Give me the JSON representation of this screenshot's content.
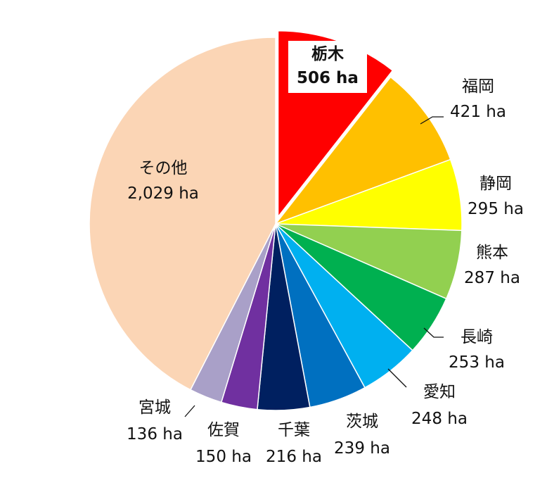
{
  "chart_data": {
    "type": "pie",
    "unit": "ha",
    "slices": [
      {
        "label": "栃木",
        "value": 506,
        "display": "506 ha",
        "color": "#ff0000",
        "exploded": true,
        "bold": true
      },
      {
        "label": "福岡",
        "value": 421,
        "display": "421 ha",
        "color": "#ffc000"
      },
      {
        "label": "静岡",
        "value": 295,
        "display": "295 ha",
        "color": "#ffff00"
      },
      {
        "label": "熊本",
        "value": 287,
        "display": "287 ha",
        "color": "#92d050"
      },
      {
        "label": "長崎",
        "value": 253,
        "display": "253 ha",
        "color": "#00b050"
      },
      {
        "label": "愛知",
        "value": 248,
        "display": "248 ha",
        "color": "#00b0f0"
      },
      {
        "label": "茨城",
        "value": 239,
        "display": "239 ha",
        "color": "#0070c0"
      },
      {
        "label": "千葉",
        "value": 216,
        "display": "216 ha",
        "color": "#002060"
      },
      {
        "label": "佐賀",
        "value": 150,
        "display": "150 ha",
        "color": "#7030a0"
      },
      {
        "label": "宮城",
        "value": 136,
        "display": "136 ha",
        "color": "#a9a0c8"
      },
      {
        "label": "その他",
        "value": 2029,
        "display": "2,029 ha",
        "color": "#fbd5b5"
      }
    ]
  }
}
